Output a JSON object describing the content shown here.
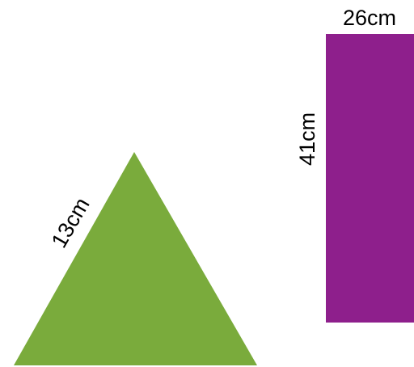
{
  "shapes": {
    "triangle": {
      "side_label": "13cm",
      "color": "#7aab3c"
    },
    "rectangle": {
      "width_label": "26cm",
      "height_label": "41cm",
      "color": "#8e1f8c"
    }
  }
}
